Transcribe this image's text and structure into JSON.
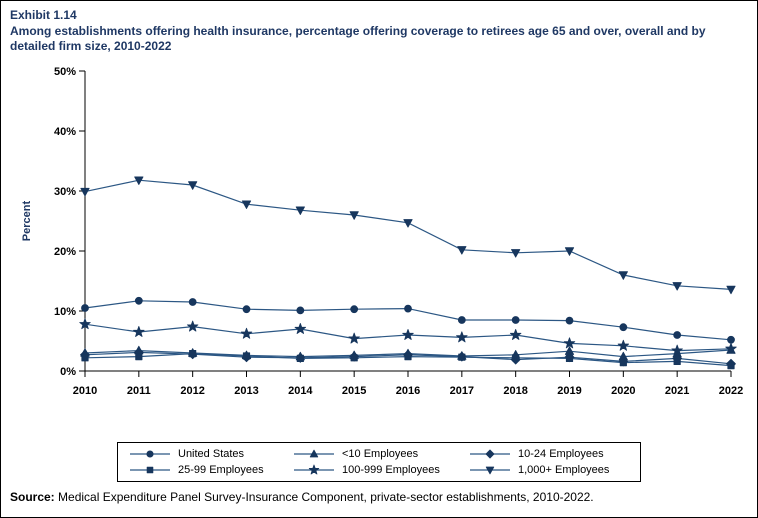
{
  "exhibit": {
    "number": "Exhibit 1.14",
    "title": "Among establishments offering health insurance, percentage offering coverage to retirees age 65 and over, overall and by detailed firm size, 2010-2022"
  },
  "source": {
    "label": "Source:",
    "text": " Medical Expenditure Panel Survey-Insurance Component, private-sector establishments, 2010-2022."
  },
  "chart_data": {
    "type": "line",
    "title": "",
    "xlabel": "",
    "ylabel": "Percent",
    "ylim": [
      0,
      50
    ],
    "yticks": [
      0,
      10,
      20,
      30,
      40,
      50
    ],
    "ytick_suffix": "%",
    "grid": false,
    "legend_position": "bottom",
    "line_color": "#2C5784",
    "marker_color": "#17365D",
    "x": [
      2010,
      2011,
      2012,
      2013,
      2014,
      2015,
      2016,
      2017,
      2018,
      2019,
      2020,
      2021,
      2022
    ],
    "series": [
      {
        "name": "United States",
        "marker": "circle",
        "values": [
          10.5,
          11.7,
          11.5,
          10.3,
          10.1,
          10.3,
          10.4,
          8.5,
          8.5,
          8.4,
          7.3,
          6.0,
          5.2
        ]
      },
      {
        "name": "<10 Employees",
        "marker": "triangle-up",
        "values": [
          3.0,
          3.4,
          3.0,
          2.6,
          2.4,
          2.6,
          2.9,
          2.5,
          2.7,
          3.3,
          2.4,
          2.9,
          3.5
        ]
      },
      {
        "name": "10-24 Employees",
        "marker": "diamond",
        "values": [
          2.7,
          3.1,
          2.8,
          2.3,
          2.2,
          2.4,
          2.7,
          2.4,
          1.9,
          2.3,
          1.6,
          2.1,
          1.2
        ]
      },
      {
        "name": "25-99 Employees",
        "marker": "square",
        "values": [
          2.2,
          2.4,
          2.9,
          2.5,
          2.1,
          2.2,
          2.4,
          2.3,
          2.2,
          2.1,
          1.4,
          1.6,
          0.9
        ]
      },
      {
        "name": "100-999 Employees",
        "marker": "star",
        "values": [
          7.8,
          6.5,
          7.4,
          6.2,
          7.0,
          5.4,
          6.0,
          5.6,
          6.0,
          4.6,
          4.2,
          3.4,
          3.7
        ]
      },
      {
        "name": "1,000+ Employees",
        "marker": "triangle-down",
        "values": [
          29.9,
          31.8,
          31.0,
          27.8,
          26.8,
          26.0,
          24.7,
          20.2,
          19.7,
          20.0,
          16.0,
          14.2,
          13.6
        ]
      }
    ]
  }
}
